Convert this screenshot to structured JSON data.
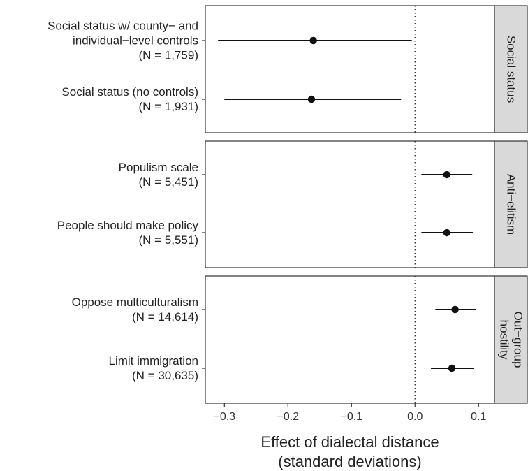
{
  "chart_data": {
    "type": "scatter",
    "subtype": "forest-plot",
    "x_axis": {
      "title_lines": [
        "Effect of dialectal distance",
        "(standard deviations)"
      ],
      "xlim": [
        -0.33,
        0.125
      ],
      "ticks": [
        -0.3,
        -0.2,
        -0.1,
        0.0,
        0.1
      ],
      "tick_labels": [
        "−0.3",
        "−0.2",
        "−0.1",
        "0.0",
        "0.1"
      ]
    },
    "reference_line": {
      "x": 0.0,
      "style": "dotted"
    },
    "grid": false,
    "panels": [
      {
        "strip_lines": [
          "Social status"
        ],
        "rows": [
          {
            "label_lines": [
              "Social status w/ county− and",
              "individual−level controls",
              "(N = 1,759)"
            ],
            "estimate": -0.16,
            "ci_low": -0.31,
            "ci_high": -0.005
          },
          {
            "label_lines": [
              "Social status (no controls)",
              "(N = 1,931)"
            ],
            "estimate": -0.163,
            "ci_low": -0.3,
            "ci_high": -0.022
          }
        ]
      },
      {
        "strip_lines": [
          "Anti−elitism"
        ],
        "rows": [
          {
            "label_lines": [
              "Populism scale",
              "(N =  5,451)"
            ],
            "estimate": 0.05,
            "ci_low": 0.01,
            "ci_high": 0.09
          },
          {
            "label_lines": [
              "People should make policy",
              "(N =  5,551)"
            ],
            "estimate": 0.05,
            "ci_low": 0.01,
            "ci_high": 0.091
          }
        ]
      },
      {
        "strip_lines": [
          "Out−group",
          "hostility"
        ],
        "rows": [
          {
            "label_lines": [
              "Oppose multiculturalism",
              "(N = 14,614)"
            ],
            "estimate": 0.063,
            "ci_low": 0.032,
            "ci_high": 0.096
          },
          {
            "label_lines": [
              "Limit immigration",
              "(N = 30,635)"
            ],
            "estimate": 0.058,
            "ci_low": 0.025,
            "ci_high": 0.092
          }
        ]
      }
    ]
  }
}
